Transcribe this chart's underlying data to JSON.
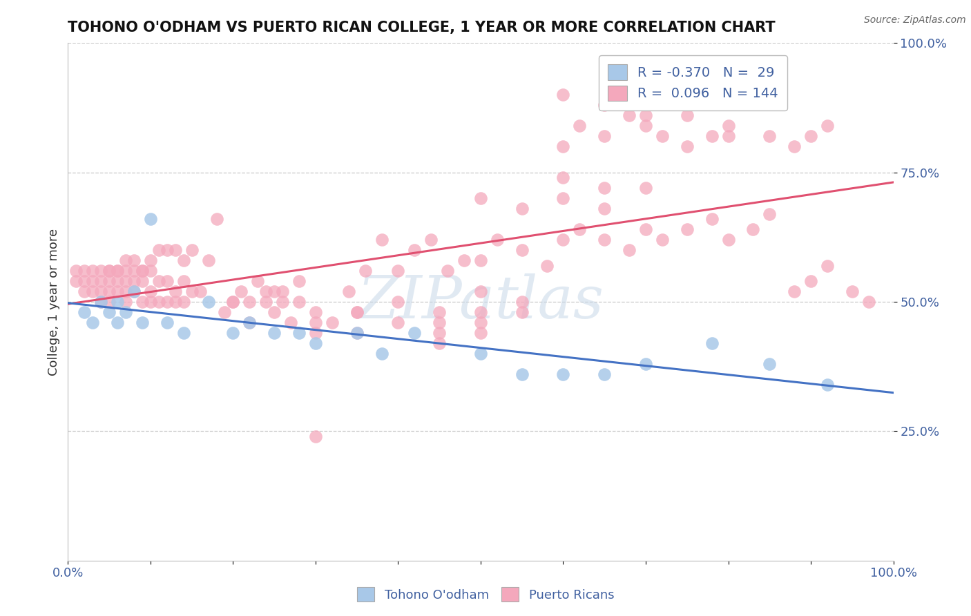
{
  "title": "TOHONO O'ODHAM VS PUERTO RICAN COLLEGE, 1 YEAR OR MORE CORRELATION CHART",
  "source_text": "Source: ZipAtlas.com",
  "ylabel": "College, 1 year or more",
  "xlim": [
    0.0,
    1.0
  ],
  "ylim": [
    0.0,
    1.0
  ],
  "xtick_positions": [
    0.0,
    0.1,
    0.2,
    0.3,
    0.4,
    0.5,
    0.6,
    0.7,
    0.8,
    0.9,
    1.0
  ],
  "xticklabels": [
    "0.0%",
    "",
    "",
    "",
    "",
    "",
    "",
    "",
    "",
    "",
    "100.0%"
  ],
  "ytick_positions": [
    0.25,
    0.5,
    0.75,
    1.0
  ],
  "yticklabels": [
    "25.0%",
    "50.0%",
    "75.0%",
    "100.0%"
  ],
  "legend_r_blue": "-0.370",
  "legend_n_blue": "29",
  "legend_r_pink": "0.096",
  "legend_n_pink": "144",
  "blue_color": "#a8c8e8",
  "pink_color": "#f4a8bc",
  "line_blue_color": "#4472c4",
  "line_pink_color": "#e05070",
  "background_color": "#ffffff",
  "grid_color": "#c8c8c8",
  "blue_x": [
    0.02,
    0.03,
    0.04,
    0.05,
    0.06,
    0.06,
    0.07,
    0.08,
    0.09,
    0.1,
    0.12,
    0.14,
    0.17,
    0.2,
    0.22,
    0.25,
    0.28,
    0.3,
    0.35,
    0.38,
    0.42,
    0.5,
    0.55,
    0.6,
    0.65,
    0.7,
    0.78,
    0.85,
    0.92
  ],
  "blue_y": [
    0.48,
    0.46,
    0.5,
    0.48,
    0.5,
    0.46,
    0.48,
    0.52,
    0.46,
    0.66,
    0.46,
    0.44,
    0.5,
    0.44,
    0.46,
    0.44,
    0.44,
    0.42,
    0.44,
    0.4,
    0.44,
    0.4,
    0.36,
    0.36,
    0.36,
    0.38,
    0.42,
    0.38,
    0.34
  ],
  "pink_x": [
    0.01,
    0.01,
    0.02,
    0.02,
    0.02,
    0.03,
    0.03,
    0.03,
    0.04,
    0.04,
    0.04,
    0.04,
    0.05,
    0.05,
    0.05,
    0.05,
    0.06,
    0.06,
    0.06,
    0.07,
    0.07,
    0.07,
    0.07,
    0.08,
    0.08,
    0.08,
    0.09,
    0.09,
    0.09,
    0.1,
    0.1,
    0.1,
    0.11,
    0.11,
    0.12,
    0.12,
    0.13,
    0.13,
    0.14,
    0.14,
    0.15,
    0.16,
    0.17,
    0.18,
    0.19,
    0.2,
    0.21,
    0.22,
    0.23,
    0.24,
    0.25,
    0.26,
    0.27,
    0.28,
    0.3,
    0.3,
    0.32,
    0.34,
    0.36,
    0.38,
    0.4,
    0.42,
    0.44,
    0.46,
    0.48,
    0.5,
    0.52,
    0.55,
    0.58,
    0.6,
    0.62,
    0.65,
    0.68,
    0.7,
    0.72,
    0.75,
    0.78,
    0.8,
    0.83,
    0.85,
    0.88,
    0.9,
    0.92,
    0.95,
    0.97,
    0.6,
    0.62,
    0.65,
    0.68,
    0.7,
    0.72,
    0.75,
    0.78,
    0.8,
    0.6,
    0.65,
    0.7,
    0.75,
    0.8,
    0.85,
    0.88,
    0.9,
    0.92,
    0.5,
    0.55,
    0.6,
    0.65,
    0.7,
    0.6,
    0.65,
    0.35,
    0.4,
    0.45,
    0.5,
    0.55,
    0.45,
    0.5,
    0.55,
    0.45,
    0.5,
    0.3,
    0.35,
    0.4,
    0.45,
    0.5,
    0.25,
    0.3,
    0.35,
    0.2,
    0.22,
    0.24,
    0.26,
    0.28,
    0.05,
    0.06,
    0.07,
    0.08,
    0.09,
    0.1,
    0.11,
    0.12,
    0.13,
    0.14,
    0.15
  ],
  "pink_y": [
    0.56,
    0.54,
    0.56,
    0.54,
    0.52,
    0.56,
    0.54,
    0.52,
    0.56,
    0.54,
    0.52,
    0.5,
    0.56,
    0.54,
    0.52,
    0.5,
    0.56,
    0.54,
    0.52,
    0.56,
    0.54,
    0.52,
    0.5,
    0.56,
    0.54,
    0.52,
    0.56,
    0.54,
    0.5,
    0.56,
    0.52,
    0.5,
    0.54,
    0.5,
    0.54,
    0.5,
    0.52,
    0.5,
    0.54,
    0.5,
    0.52,
    0.52,
    0.58,
    0.66,
    0.48,
    0.5,
    0.52,
    0.46,
    0.54,
    0.5,
    0.52,
    0.5,
    0.46,
    0.54,
    0.24,
    0.48,
    0.46,
    0.52,
    0.56,
    0.62,
    0.56,
    0.6,
    0.62,
    0.56,
    0.58,
    0.58,
    0.62,
    0.6,
    0.57,
    0.62,
    0.64,
    0.62,
    0.6,
    0.64,
    0.62,
    0.64,
    0.66,
    0.62,
    0.64,
    0.67,
    0.52,
    0.54,
    0.57,
    0.52,
    0.5,
    0.8,
    0.84,
    0.82,
    0.86,
    0.84,
    0.82,
    0.8,
    0.82,
    0.82,
    0.9,
    0.88,
    0.86,
    0.86,
    0.84,
    0.82,
    0.8,
    0.82,
    0.84,
    0.7,
    0.68,
    0.7,
    0.68,
    0.72,
    0.74,
    0.72,
    0.48,
    0.5,
    0.48,
    0.52,
    0.5,
    0.44,
    0.46,
    0.48,
    0.42,
    0.44,
    0.44,
    0.44,
    0.46,
    0.46,
    0.48,
    0.48,
    0.46,
    0.48,
    0.5,
    0.5,
    0.52,
    0.52,
    0.5,
    0.56,
    0.56,
    0.58,
    0.58,
    0.56,
    0.58,
    0.6,
    0.6,
    0.6,
    0.58,
    0.6
  ]
}
